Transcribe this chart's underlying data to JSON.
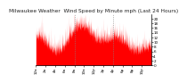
{
  "title": "Milwaukee Weather  Wind Speed by Minute mph (Last 24 Hours)",
  "bar_color": "#ff0000",
  "background_color": "#ffffff",
  "plot_bg_color": "#ffffff",
  "n_points": 1440,
  "ylim": [
    0,
    22
  ],
  "yticks": [
    0,
    2,
    4,
    6,
    8,
    10,
    12,
    14,
    16,
    18,
    20
  ],
  "grid_color": "#888888",
  "title_fontsize": 4.2,
  "tick_fontsize": 3.0,
  "seed": 99
}
